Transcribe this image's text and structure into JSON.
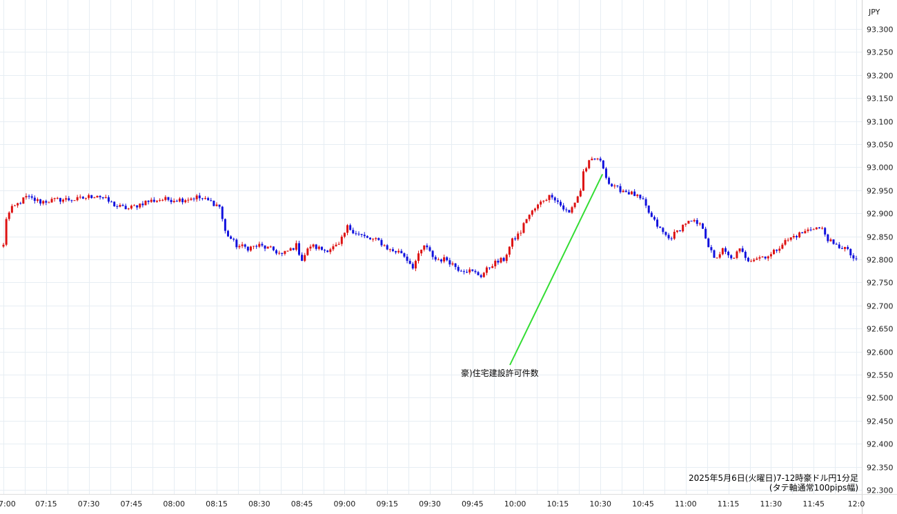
{
  "chart_data": {
    "type": "candlestick",
    "currency_label": "JPY",
    "caption_line1": "2025年5月6日(火曜日)7-12時豪ドル円1分足",
    "caption_line2": "(タテ軸通常100pips幅)",
    "ylim": [
      92.3,
      93.3
    ],
    "y_ticks": [
      "93.300",
      "93.250",
      "93.200",
      "93.150",
      "93.100",
      "93.050",
      "93.000",
      "92.950",
      "92.900",
      "92.850",
      "92.800",
      "92.750",
      "92.700",
      "92.650",
      "92.600",
      "92.550",
      "92.500",
      "92.450",
      "92.400",
      "92.350",
      "92.300"
    ],
    "x_ticks": [
      {
        "label": "7:00",
        "min": 0
      },
      {
        "label": "07:15",
        "min": 15
      },
      {
        "label": "07:30",
        "min": 30
      },
      {
        "label": "07:45",
        "min": 45
      },
      {
        "label": "08:00",
        "min": 60
      },
      {
        "label": "08:15",
        "min": 75
      },
      {
        "label": "08:30",
        "min": 90
      },
      {
        "label": "08:45",
        "min": 105
      },
      {
        "label": "09:00",
        "min": 120
      },
      {
        "label": "09:15",
        "min": 135
      },
      {
        "label": "09:30",
        "min": 150
      },
      {
        "label": "09:45",
        "min": 165
      },
      {
        "label": "10:00",
        "min": 180
      },
      {
        "label": "10:15",
        "min": 195
      },
      {
        "label": "10:30",
        "min": 210
      },
      {
        "label": "10:45",
        "min": 225
      },
      {
        "label": "11:00",
        "min": 240
      },
      {
        "label": "11:15",
        "min": 255
      },
      {
        "label": "11:30",
        "min": 270
      },
      {
        "label": "11:45",
        "min": 285
      },
      {
        "label": "12:0",
        "min": 300
      }
    ],
    "close_anchors": [
      [
        0,
        92.83
      ],
      [
        1,
        92.89
      ],
      [
        3,
        92.91
      ],
      [
        8,
        92.935
      ],
      [
        13,
        92.925
      ],
      [
        20,
        92.93
      ],
      [
        26,
        92.93
      ],
      [
        33,
        92.94
      ],
      [
        40,
        92.915
      ],
      [
        44,
        92.91
      ],
      [
        50,
        92.925
      ],
      [
        55,
        92.93
      ],
      [
        63,
        92.93
      ],
      [
        68,
        92.935
      ],
      [
        73,
        92.925
      ],
      [
        76,
        92.915
      ],
      [
        78,
        92.86
      ],
      [
        82,
        92.83
      ],
      [
        86,
        92.825
      ],
      [
        90,
        92.83
      ],
      [
        95,
        92.82
      ],
      [
        98,
        92.81
      ],
      [
        103,
        92.83
      ],
      [
        105,
        92.8
      ],
      [
        108,
        92.83
      ],
      [
        113,
        92.82
      ],
      [
        118,
        92.83
      ],
      [
        121,
        92.87
      ],
      [
        125,
        92.855
      ],
      [
        128,
        92.845
      ],
      [
        132,
        92.84
      ],
      [
        136,
        92.82
      ],
      [
        140,
        92.815
      ],
      [
        144,
        92.785
      ],
      [
        148,
        92.83
      ],
      [
        152,
        92.8
      ],
      [
        156,
        92.8
      ],
      [
        160,
        92.78
      ],
      [
        164,
        92.775
      ],
      [
        168,
        92.765
      ],
      [
        172,
        92.79
      ],
      [
        176,
        92.8
      ],
      [
        179,
        92.84
      ],
      [
        182,
        92.86
      ],
      [
        184,
        92.89
      ],
      [
        187,
        92.91
      ],
      [
        190,
        92.93
      ],
      [
        193,
        92.94
      ],
      [
        197,
        92.91
      ],
      [
        199,
        92.9
      ],
      [
        201,
        92.925
      ],
      [
        203,
        92.95
      ],
      [
        204,
        92.99
      ],
      [
        206,
        93.01
      ],
      [
        209,
        93.02
      ],
      [
        211,
        93.0
      ],
      [
        213,
        92.965
      ],
      [
        215,
        92.955
      ],
      [
        218,
        92.95
      ],
      [
        222,
        92.94
      ],
      [
        225,
        92.925
      ],
      [
        228,
        92.89
      ],
      [
        231,
        92.865
      ],
      [
        234,
        92.845
      ],
      [
        237,
        92.86
      ],
      [
        240,
        92.88
      ],
      [
        243,
        92.88
      ],
      [
        246,
        92.87
      ],
      [
        248,
        92.83
      ],
      [
        250,
        92.8
      ],
      [
        253,
        92.82
      ],
      [
        256,
        92.8
      ],
      [
        259,
        92.82
      ],
      [
        262,
        92.8
      ],
      [
        266,
        92.805
      ],
      [
        270,
        92.81
      ],
      [
        274,
        92.835
      ],
      [
        278,
        92.85
      ],
      [
        282,
        92.86
      ],
      [
        285,
        92.87
      ],
      [
        288,
        92.865
      ],
      [
        290,
        92.845
      ],
      [
        292,
        92.83
      ],
      [
        296,
        92.825
      ],
      [
        300,
        92.795
      ]
    ],
    "annotation": {
      "text": "豪)住宅建設許可件数",
      "min": 210
    }
  }
}
